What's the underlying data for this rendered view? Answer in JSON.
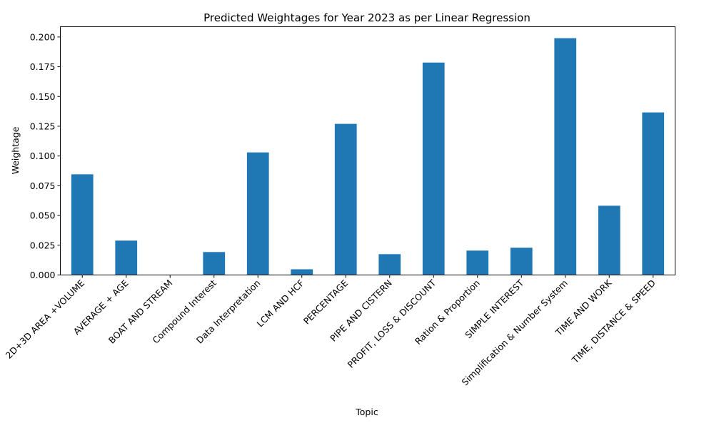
{
  "chart_data": {
    "type": "bar",
    "title": "Predicted Weightages for Year 2023 as per Linear Regression",
    "xlabel": "Topic",
    "ylabel": "Weightage",
    "categories": [
      "2D+3D AREA +VOLUME",
      "AVERAGE + AGE",
      "BOAT AND STREAM",
      "Compound Interest",
      "Data Interpretation",
      "LCM AND HCF",
      "PERCENTAGE",
      "PIPE AND CISTERN",
      "PROFIT, LOSS & DISCOUNT",
      "Ration & Proportion",
      "SIMPLE INTEREST",
      "Simplification & Number System",
      "TIME AND WORK",
      "TIME, DISTANCE & SPEED"
    ],
    "values": [
      0.0846,
      0.0289,
      0.0,
      0.0193,
      0.103,
      0.0048,
      0.127,
      0.0175,
      0.1785,
      0.0205,
      0.0229,
      0.199,
      0.0582,
      0.1366
    ],
    "ylim": [
      0,
      0.2086
    ],
    "yticks": [
      "0.000",
      "0.025",
      "0.050",
      "0.075",
      "0.100",
      "0.125",
      "0.150",
      "0.175",
      "0.200"
    ],
    "bar_color": "#1f77b4",
    "grid": false,
    "legend": "none"
  }
}
